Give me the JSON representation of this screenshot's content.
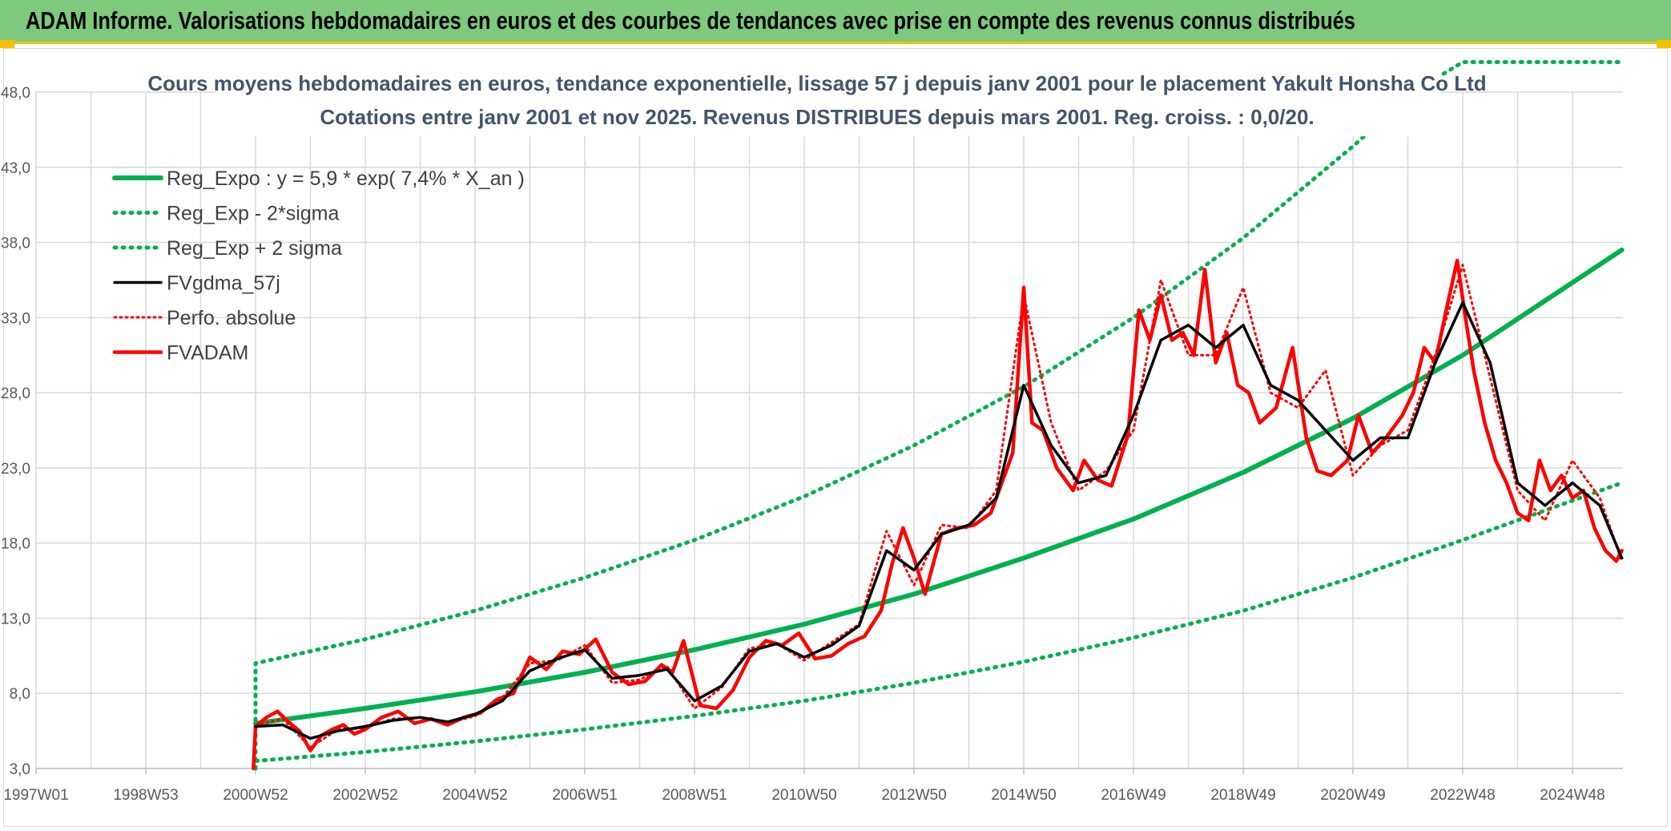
{
  "header": {
    "title": "ADAM Informe. Valorisations hebdomadaires en euros et des courbes de tendances avec prise en compte des revenus connus distribués"
  },
  "chart_data": {
    "type": "line",
    "title": "Cours moyens hebdomadaires en euros, tendance exponentielle, lissage 57 j depuis janv 2001 pour le placement Yakult Honsha Co Ltd",
    "subtitle": "Cotations entre janv 2001 et nov 2025. Revenus DISTRIBUES depuis mars 2001. Reg. croiss. : 0,0/20.",
    "xlabel": "",
    "ylabel": "",
    "x_range": [
      1997.0,
      2025.92
    ],
    "ylim": [
      3.0,
      48.0
    ],
    "y_ticks": [
      3.0,
      8.0,
      13.0,
      18.0,
      23.0,
      28.0,
      33.0,
      38.0,
      43.0,
      48.0
    ],
    "y_tick_labels": [
      "3,0",
      "8,0",
      "13,0",
      "18,0",
      "23,0",
      "28,0",
      "33,0",
      "38,0",
      "43,0",
      "48,0"
    ],
    "x_ticks": [
      1997.0,
      1999.0,
      2001.0,
      2003.0,
      2005.0,
      2007.0,
      2009.0,
      2011.0,
      2013.0,
      2015.0,
      2017.0,
      2019.0,
      2021.0,
      2023.0,
      2025.0
    ],
    "x_tick_labels": [
      "1997W01",
      "1998W53",
      "2000W52",
      "2002W52",
      "2004W52",
      "2006W51",
      "2008W51",
      "2010W50",
      "2012W50",
      "2014W50",
      "2016W49",
      "2018W49",
      "2020W49",
      "2022W48",
      "2024W48"
    ],
    "grid": true,
    "legend_position": "top-left",
    "series": [
      {
        "name": "Reg_Expo : y = 5,9 * exp( 7,4% *  X_an )",
        "color": "#00b050",
        "style": "solid",
        "x": [
          2001.0,
          2003.0,
          2005.0,
          2007.0,
          2009.0,
          2011.0,
          2013.0,
          2015.0,
          2017.0,
          2019.0,
          2021.0,
          2023.0,
          2025.9
        ],
        "values": [
          6.0,
          7.0,
          8.1,
          9.4,
          10.9,
          12.6,
          14.6,
          17.0,
          19.6,
          22.7,
          26.3,
          30.5,
          37.5
        ]
      },
      {
        "name": "Reg_Exp - 2*sigma",
        "color": "#00b050",
        "style": "dotted",
        "x": [
          2001.0,
          2003.0,
          2005.0,
          2007.0,
          2009.0,
          2011.0,
          2013.0,
          2015.0,
          2017.0,
          2019.0,
          2021.0,
          2023.0,
          2025.9
        ],
        "values": [
          3.5,
          4.1,
          4.8,
          5.6,
          6.5,
          7.5,
          8.7,
          10.1,
          11.7,
          13.5,
          15.7,
          18.2,
          22.0
        ]
      },
      {
        "name": "Reg_Exp + 2 sigma",
        "color": "#00b050",
        "style": "dotted",
        "x": [
          2001.0,
          2003.0,
          2005.0,
          2007.0,
          2009.0,
          2011.0,
          2013.0,
          2015.0,
          2017.0,
          2019.0,
          2021.0,
          2022.1,
          2023.0,
          2025.9
        ],
        "values": [
          10.0,
          11.6,
          13.5,
          15.7,
          18.2,
          21.1,
          24.5,
          28.4,
          33.0,
          38.3,
          44.4,
          48.0,
          50.0,
          50.0
        ]
      },
      {
        "name": "FVgdma_57j",
        "color": "#000000",
        "style": "solid",
        "x": [
          2001.0,
          2001.5,
          2002.0,
          2002.5,
          2003.0,
          2003.5,
          2004.0,
          2004.5,
          2005.0,
          2005.5,
          2006.0,
          2006.5,
          2007.0,
          2007.5,
          2008.0,
          2008.5,
          2009.0,
          2009.5,
          2010.0,
          2010.5,
          2011.0,
          2011.5,
          2012.0,
          2012.5,
          2013.0,
          2013.5,
          2014.0,
          2014.5,
          2015.0,
          2015.5,
          2016.0,
          2016.5,
          2017.0,
          2017.5,
          2018.0,
          2018.5,
          2019.0,
          2019.5,
          2020.0,
          2020.5,
          2021.0,
          2021.5,
          2022.0,
          2022.5,
          2023.0,
          2023.5,
          2024.0,
          2024.5,
          2025.0,
          2025.5,
          2025.9
        ],
        "values": [
          5.8,
          5.9,
          5.0,
          5.5,
          5.8,
          6.2,
          6.4,
          6.1,
          6.6,
          7.5,
          9.5,
          10.3,
          10.9,
          9.0,
          9.2,
          9.6,
          7.5,
          8.5,
          10.8,
          11.3,
          10.4,
          11.2,
          12.5,
          17.5,
          16.2,
          18.6,
          19.2,
          21.0,
          28.5,
          24.5,
          22.0,
          22.5,
          26.5,
          31.5,
          32.5,
          31.0,
          32.5,
          28.5,
          27.5,
          25.5,
          23.5,
          25.0,
          25.0,
          30.0,
          34.0,
          30.0,
          22.0,
          20.5,
          22.0,
          20.5,
          17.0
        ]
      },
      {
        "name": "Perfo. absolue",
        "color": "#ff0000",
        "style": "dotted",
        "x": [
          2001.0,
          2001.5,
          2002.0,
          2002.5,
          2003.0,
          2003.5,
          2004.0,
          2004.5,
          2005.0,
          2005.5,
          2006.0,
          2006.5,
          2007.0,
          2007.5,
          2008.0,
          2008.5,
          2009.0,
          2009.5,
          2010.0,
          2010.5,
          2011.0,
          2011.5,
          2012.0,
          2012.5,
          2013.0,
          2013.5,
          2014.0,
          2014.5,
          2015.0,
          2015.5,
          2016.0,
          2016.5,
          2017.0,
          2017.5,
          2018.0,
          2018.5,
          2019.0,
          2019.5,
          2020.0,
          2020.5,
          2021.0,
          2021.5,
          2022.0,
          2022.5,
          2023.0,
          2023.5,
          2024.0,
          2024.5,
          2025.0,
          2025.5,
          2025.9
        ],
        "values": [
          5.9,
          6.3,
          4.4,
          5.6,
          5.7,
          6.3,
          6.4,
          6.0,
          6.5,
          7.7,
          10.0,
          10.2,
          11.2,
          8.7,
          8.9,
          9.8,
          7.0,
          8.4,
          11.0,
          11.3,
          10.2,
          11.4,
          12.6,
          18.8,
          15.2,
          19.2,
          19.0,
          21.5,
          34.5,
          26.0,
          21.5,
          22.8,
          25.5,
          35.5,
          30.5,
          30.5,
          35.0,
          28.0,
          27.0,
          29.5,
          22.5,
          24.5,
          25.5,
          30.5,
          36.5,
          29.0,
          21.5,
          19.5,
          23.5,
          21.0,
          16.8
        ]
      },
      {
        "name": "FVADAM",
        "color": "#ff0000",
        "style": "solid",
        "x": [
          2000.96,
          2001.0,
          2001.2,
          2001.4,
          2001.6,
          2001.8,
          2002.0,
          2002.2,
          2002.4,
          2002.6,
          2002.8,
          2003.0,
          2003.3,
          2003.6,
          2003.9,
          2004.2,
          2004.5,
          2004.8,
          2005.1,
          2005.4,
          2005.7,
          2006.0,
          2006.3,
          2006.6,
          2006.9,
          2007.2,
          2007.5,
          2007.8,
          2008.1,
          2008.4,
          2008.6,
          2008.8,
          2009.1,
          2009.4,
          2009.7,
          2010.0,
          2010.3,
          2010.6,
          2010.9,
          2011.2,
          2011.5,
          2011.8,
          2012.1,
          2012.4,
          2012.6,
          2012.8,
          2013.0,
          2013.2,
          2013.5,
          2013.8,
          2014.1,
          2014.4,
          2014.6,
          2014.8,
          2015.0,
          2015.15,
          2015.35,
          2015.6,
          2015.9,
          2016.1,
          2016.35,
          2016.6,
          2016.9,
          2017.1,
          2017.3,
          2017.5,
          2017.7,
          2017.9,
          2018.1,
          2018.3,
          2018.5,
          2018.7,
          2018.9,
          2019.1,
          2019.3,
          2019.6,
          2019.9,
          2020.15,
          2020.35,
          2020.6,
          2020.9,
          2021.1,
          2021.35,
          2021.6,
          2021.9,
          2022.1,
          2022.3,
          2022.5,
          2022.7,
          2022.9,
          2023.05,
          2023.2,
          2023.4,
          2023.6,
          2023.8,
          2024.0,
          2024.2,
          2024.4,
          2024.6,
          2024.8,
          2025.0,
          2025.2,
          2025.4,
          2025.6,
          2025.8,
          2025.9
        ],
        "values": [
          3.0,
          5.8,
          6.4,
          6.8,
          6.1,
          5.5,
          4.2,
          5.2,
          5.6,
          5.9,
          5.3,
          5.6,
          6.4,
          6.8,
          6.0,
          6.3,
          5.9,
          6.4,
          6.7,
          7.6,
          8.0,
          10.4,
          9.6,
          10.8,
          10.6,
          11.6,
          9.4,
          8.6,
          8.8,
          9.9,
          9.4,
          11.5,
          7.2,
          7.0,
          8.2,
          10.4,
          11.5,
          11.2,
          12.0,
          10.3,
          10.5,
          11.3,
          11.8,
          13.5,
          16.6,
          19.0,
          17.0,
          14.6,
          18.6,
          19.0,
          19.2,
          20.0,
          22.0,
          24.0,
          35.0,
          26.0,
          25.5,
          23.0,
          21.5,
          23.5,
          22.2,
          21.8,
          25.2,
          33.5,
          31.5,
          34.5,
          31.5,
          32.0,
          30.5,
          36.2,
          30.0,
          32.0,
          28.5,
          28.0,
          26.0,
          27.0,
          31.0,
          25.0,
          22.8,
          22.5,
          23.5,
          26.5,
          24.0,
          25.0,
          26.5,
          28.0,
          31.0,
          30.0,
          33.5,
          36.8,
          33.0,
          29.5,
          26.0,
          23.5,
          22.0,
          20.0,
          19.5,
          23.5,
          21.5,
          22.5,
          21.0,
          21.5,
          19.0,
          17.5,
          16.8,
          17.5
        ]
      }
    ]
  }
}
